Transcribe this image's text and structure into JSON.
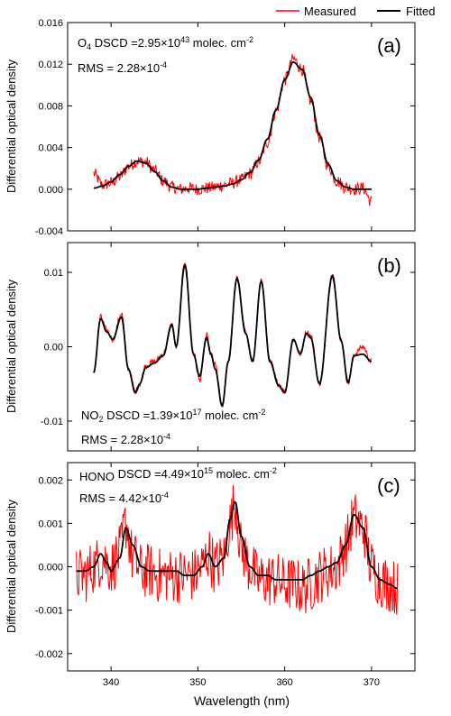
{
  "legend": {
    "placement": "top-right",
    "items": [
      {
        "label": "Measured",
        "color": "#ff0000"
      },
      {
        "label": "Fitted",
        "color": "#000000"
      }
    ]
  },
  "xlabel": "Wavelength (nm)",
  "xlim": [
    335,
    375
  ],
  "xticks": [
    "340",
    "350",
    "360",
    "370"
  ],
  "chart_data": [
    {
      "type": "line",
      "panel_label": "(a)",
      "ylabel": "Differential optical density",
      "ylim": [
        -0.004,
        0.016
      ],
      "yticks": [
        "-0.004",
        "0.000",
        "0.004",
        "0.008",
        "0.012",
        "0.016"
      ],
      "annotation": {
        "species": "O",
        "species_sub": "4",
        "dscd_prefix": " DSCD =2.95×10",
        "dscd_exp": "43",
        "unit": " molec. cm",
        "unit_exp": "-2",
        "rms_prefix": "RMS = 2.28×10",
        "rms_exp": "-4"
      },
      "series": [
        {
          "name": "Measured",
          "color": "#ff0000",
          "noise": 0.0006,
          "x": [
            338,
            339,
            340,
            341,
            342,
            343,
            344,
            345,
            346,
            347,
            348,
            349,
            350,
            351,
            352,
            353,
            354,
            355,
            356,
            357,
            358,
            359,
            360,
            361,
            362,
            363,
            364,
            365,
            366,
            367,
            368,
            369,
            370
          ],
          "y": [
            0.0015,
            0.0004,
            0.0006,
            0.0012,
            0.0022,
            0.0027,
            0.0026,
            0.0018,
            0.0008,
            0.0002,
            0.0,
            0.0001,
            0.0,
            0.0001,
            0.0002,
            0.0004,
            0.0006,
            0.0009,
            0.0015,
            0.0026,
            0.0045,
            0.0075,
            0.0105,
            0.0125,
            0.0115,
            0.0085,
            0.005,
            0.0022,
            0.0008,
            0.0002,
            0.0,
            0.0001,
            -0.0012
          ]
        },
        {
          "name": "Fitted",
          "color": "#000000",
          "noise": 0,
          "x": [
            338,
            339,
            340,
            341,
            342,
            343,
            344,
            345,
            346,
            347,
            348,
            349,
            350,
            351,
            352,
            353,
            354,
            355,
            356,
            357,
            358,
            359,
            360,
            361,
            362,
            363,
            364,
            365,
            366,
            367,
            368,
            369,
            370
          ],
          "y": [
            0.0001,
            0.0003,
            0.0007,
            0.0014,
            0.0022,
            0.0027,
            0.0025,
            0.0017,
            0.0008,
            0.0002,
            0.0,
            0.0,
            0.0,
            0.0001,
            0.0002,
            0.0003,
            0.0005,
            0.0009,
            0.0016,
            0.0028,
            0.0048,
            0.0076,
            0.0105,
            0.0122,
            0.0115,
            0.0088,
            0.0052,
            0.0024,
            0.0008,
            0.0002,
            0.0,
            0.0,
            0.0
          ]
        }
      ]
    },
    {
      "type": "line",
      "panel_label": "(b)",
      "ylabel": "Differential optical density",
      "ylim": [
        -0.014,
        0.014
      ],
      "yticks": [
        "-0.01",
        "0.00",
        "0.01"
      ],
      "annotation": {
        "species": "NO",
        "species_sub": "2",
        "dscd_prefix": " DSCD =1.39×10",
        "dscd_exp": "17",
        "unit": " molec. cm",
        "unit_exp": "-2",
        "rms_prefix": "RMS = 2.28×10",
        "rms_exp": "-4"
      },
      "series": [
        {
          "name": "Measured",
          "color": "#ff0000",
          "noise": 0.0004,
          "x": [
            338,
            338.8,
            339.5,
            340.2,
            341.2,
            342.0,
            342.8,
            343.3,
            344.0,
            345.0,
            346.0,
            347.0,
            347.5,
            348.5,
            349.5,
            350.2,
            351.0,
            351.5,
            352.0,
            352.8,
            353.5,
            354.5,
            355.5,
            356.3,
            357.3,
            358.3,
            359.3,
            360.0,
            361.0,
            361.8,
            362.5,
            363.0,
            364.0,
            365.5,
            366.5,
            367.3,
            368.0,
            369.0,
            370.0
          ],
          "y": [
            -0.0035,
            0.004,
            0.0022,
            0.001,
            0.0045,
            -0.003,
            -0.006,
            -0.005,
            -0.0025,
            -0.002,
            -0.001,
            0.003,
            0.0,
            0.0115,
            -0.001,
            -0.0045,
            0.0015,
            -0.001,
            -0.0025,
            -0.008,
            -0.002,
            0.0095,
            0.002,
            -0.002,
            0.009,
            -0.002,
            -0.005,
            -0.006,
            0.001,
            -0.001,
            0.002,
            0.0015,
            -0.005,
            0.0095,
            0.001,
            -0.005,
            -0.001,
            0.0,
            -0.002
          ]
        },
        {
          "name": "Fitted",
          "color": "#000000",
          "noise": 0,
          "x": [
            338,
            338.8,
            339.5,
            340.2,
            341.2,
            342.0,
            342.8,
            343.3,
            344.0,
            345.0,
            346.0,
            347.0,
            347.5,
            348.5,
            349.5,
            350.2,
            351.0,
            351.5,
            352.0,
            352.8,
            353.5,
            354.5,
            355.5,
            356.3,
            357.3,
            358.3,
            359.3,
            360.0,
            361.0,
            361.8,
            362.5,
            363.0,
            364.0,
            365.5,
            366.5,
            367.3,
            368.0,
            369.0,
            370.0
          ],
          "y": [
            -0.0035,
            0.0038,
            0.002,
            0.001,
            0.004,
            -0.003,
            -0.0062,
            -0.005,
            -0.0028,
            -0.0022,
            -0.0012,
            0.003,
            0.0,
            0.011,
            -0.001,
            -0.004,
            0.0012,
            -0.001,
            -0.003,
            -0.008,
            -0.002,
            0.0092,
            0.0018,
            -0.002,
            0.0088,
            -0.002,
            -0.0052,
            -0.0062,
            0.001,
            -0.001,
            0.0018,
            0.0012,
            -0.005,
            0.0096,
            0.0008,
            -0.0048,
            -0.0012,
            -0.001,
            -0.002
          ]
        }
      ]
    },
    {
      "type": "line",
      "panel_label": "(c)",
      "ylabel": "Differential optical density",
      "ylim": [
        -0.0024,
        0.0024
      ],
      "yticks": [
        "-0.002",
        "-0.001",
        "0.000",
        "0.001",
        "0.002"
      ],
      "annotation": {
        "species": "HONO",
        "species_sub": "",
        "dscd_prefix": " DSCD =4.49×10",
        "dscd_exp": "15",
        "unit": " molec. cm",
        "unit_exp": "-2",
        "rms_prefix": "RMS = 4.42×10",
        "rms_exp": "-4"
      },
      "series": [
        {
          "name": "Measured",
          "color": "#ff0000",
          "noise": 0.00065,
          "x": [
            336,
            337,
            338,
            339,
            340,
            341,
            341.7,
            342.5,
            343.5,
            344.5,
            345.5,
            346.5,
            347.5,
            348.5,
            349.5,
            350.5,
            351.2,
            352,
            353,
            353.7,
            354.3,
            355,
            356,
            357,
            358,
            359,
            360,
            361,
            362,
            363,
            364,
            365,
            366,
            367,
            368,
            369,
            370,
            371,
            372,
            373
          ],
          "y": [
            -0.0002,
            -0.0002,
            0.0,
            0.0002,
            0.0,
            0.0003,
            0.001,
            0.0002,
            -0.0001,
            -0.0001,
            -0.0002,
            -0.0002,
            -0.0002,
            -0.0002,
            -0.0002,
            0.0,
            0.0003,
            0.0,
            0.0002,
            0.001,
            0.0015,
            0.0004,
            0.0,
            -0.0003,
            -0.0003,
            -0.0003,
            -0.0004,
            -0.0004,
            -0.0005,
            -0.0004,
            -0.0002,
            -0.0001,
            0.0,
            0.0005,
            0.0011,
            0.0009,
            0.0,
            -0.0003,
            -0.0004,
            -0.0005
          ]
        },
        {
          "name": "Fitted",
          "color": "#000000",
          "noise": 0,
          "x": [
            336,
            337,
            338,
            338.8,
            339.5,
            340,
            341,
            341.7,
            342.5,
            343.5,
            344.5,
            345.5,
            346.5,
            347.5,
            348.5,
            349.5,
            350.5,
            351.2,
            352,
            353,
            353.7,
            354.3,
            355,
            356,
            357,
            358,
            359,
            360,
            361,
            362,
            363,
            364,
            365,
            366,
            367,
            368,
            369,
            370,
            371,
            372,
            373
          ],
          "y": [
            -0.0001,
            -0.0001,
            0.0,
            0.0003,
            0.0001,
            -0.0001,
            0.0002,
            0.0009,
            0.0005,
            0.0,
            -0.0001,
            -0.0001,
            -0.0001,
            -0.0001,
            -0.0002,
            -0.0002,
            0.0,
            0.0003,
            0.0,
            0.0002,
            0.0011,
            0.0015,
            0.0007,
            0.0,
            -0.0002,
            -0.0002,
            -0.0003,
            -0.0003,
            -0.0003,
            -0.0003,
            -0.0002,
            -0.0001,
            0.0,
            0.0001,
            0.0005,
            0.0012,
            0.0009,
            0.0,
            -0.0003,
            -0.0004,
            -0.0005
          ]
        }
      ]
    }
  ]
}
